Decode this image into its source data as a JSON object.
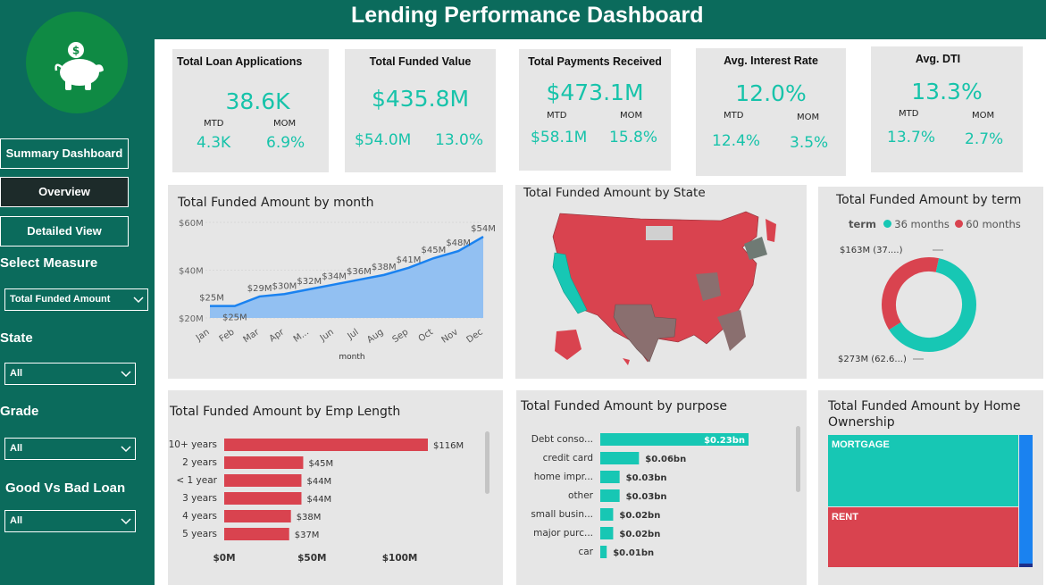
{
  "header": {
    "title": "Lending Performance Dashboard"
  },
  "sidebar": {
    "logo_icon": "piggy-bank-dollar-icon",
    "nav": [
      {
        "label": "Summary Dashboard",
        "active": false
      },
      {
        "label": "Overview",
        "active": true
      },
      {
        "label": "Detailed View",
        "active": false
      }
    ],
    "filters": [
      {
        "label": "Select Measure",
        "value": "Total Funded Amount"
      },
      {
        "label": "State",
        "value": "All"
      },
      {
        "label": "Grade",
        "value": "All"
      },
      {
        "label": "Good Vs Bad Loan",
        "value": "All"
      }
    ]
  },
  "kpis": [
    {
      "title": "Total  Loan Applications",
      "value": "38.6K",
      "mtd_label": "MTD",
      "mom_label": "MOM",
      "mtd": "4.3K",
      "mom": "6.9%"
    },
    {
      "title": "Total Funded Value",
      "value": "$435.8M",
      "mtd": "$54.0M",
      "mom": "13.0%"
    },
    {
      "title": "Total Payments Received",
      "value": "$473.1M",
      "mtd_label": "MTD",
      "mom_label": "MOM",
      "mtd": "$58.1M",
      "mom": "15.8%"
    },
    {
      "title": "Avg. Interest Rate",
      "value": "12.0%",
      "mtd_label": "MTD",
      "mom_label": "MOM",
      "mtd": "12.4%",
      "mom": "3.5%"
    },
    {
      "title": "Avg.  DTI",
      "value": "13.3%",
      "mtd_label": "MTD",
      "mom_label": "MOM",
      "mtd": "13.7%",
      "mom": "2.7%"
    }
  ],
  "chart_data": [
    {
      "type": "area",
      "title": "Total Funded Amount by month",
      "xlabel": "month",
      "categories": [
        "Jan",
        "Feb",
        "Mar",
        "Apr",
        "M...",
        "Jun",
        "Jul",
        "Aug",
        "Sep",
        "Oct",
        "Nov",
        "Dec"
      ],
      "values": [
        25,
        25,
        29,
        30,
        32,
        34,
        36,
        38,
        41,
        45,
        48,
        54
      ],
      "data_labels": [
        "$25M",
        "$25M",
        "$29M",
        "$30M",
        "$32M",
        "$34M",
        "$36M",
        "$38M",
        "$41M",
        "$45M",
        "$48M",
        "$54M"
      ],
      "yticks": [
        "$20M",
        "$40M",
        "$60M"
      ],
      "ylim": [
        20,
        60
      ],
      "color": "#1a82f0",
      "fill": "#92c0f2"
    },
    {
      "type": "pie",
      "title": "Total Funded Amount by term",
      "legend_title": "term",
      "series": [
        {
          "name": "36 months",
          "value": 273,
          "label": "$273M (62.6...)",
          "color": "#17c7b4"
        },
        {
          "name": "60 months",
          "value": 163,
          "label": "$163M (37....)",
          "color": "#d9434f"
        }
      ]
    },
    {
      "type": "bar",
      "title": "Total Funded Amount by Emp Length",
      "categories": [
        "10+ years",
        "2 years",
        "< 1 year",
        "3 years",
        "4 years",
        "5 years"
      ],
      "values": [
        116,
        45,
        44,
        44,
        38,
        37
      ],
      "data_labels": [
        "$116M",
        "$45M",
        "$44M",
        "$44M",
        "$38M",
        "$37M"
      ],
      "xticks": [
        "$0M",
        "$50M",
        "$100M"
      ],
      "color": "#d9434f"
    },
    {
      "type": "bar",
      "title": "Total Funded Amount by purpose",
      "categories": [
        "Debt conso...",
        "credit card",
        "home impr...",
        "other",
        "small busin...",
        "major purc...",
        "car"
      ],
      "values": [
        0.23,
        0.06,
        0.03,
        0.03,
        0.02,
        0.02,
        0.01
      ],
      "data_labels": [
        "$0.23bn",
        "$0.06bn",
        "$0.03bn",
        "$0.03bn",
        "$0.02bn",
        "$0.02bn",
        "$0.01bn"
      ],
      "color": "#17c7b4"
    },
    {
      "type": "heatmap",
      "title": "Total Funded Amount by Home Ownership",
      "cells": [
        {
          "label": "MORTGAGE",
          "color": "#17c7b4"
        },
        {
          "label": "RENT",
          "color": "#d9434f"
        }
      ]
    }
  ],
  "map": {
    "title": "Total Funded Amount by State",
    "colors": {
      "high": "#d9434f",
      "mid": "#8a6f6f",
      "low": "#17c7b4",
      "none": "#d0d0d0"
    }
  }
}
